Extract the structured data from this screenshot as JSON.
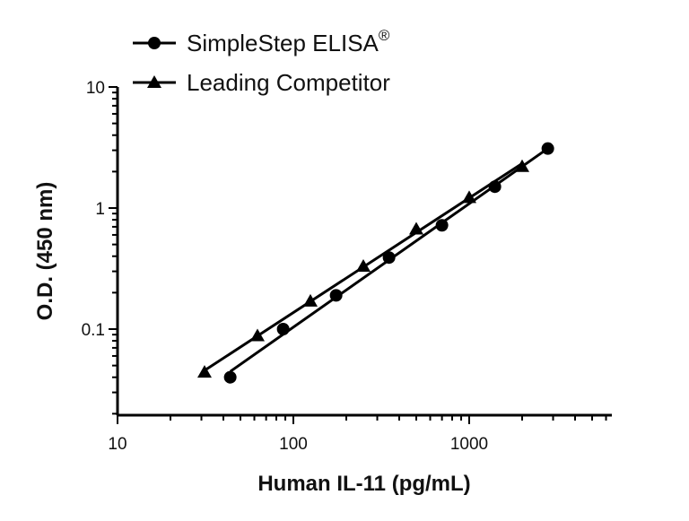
{
  "chart_data": {
    "type": "line",
    "xlabel": "Human IL-11 (pg/mL)",
    "ylabel": "O.D. (450 nm)",
    "xscale": "log",
    "yscale": "log",
    "xlim": [
      10,
      8000
    ],
    "ylim": [
      0.02,
      10
    ],
    "x_ticks": [
      {
        "value": 10,
        "label": "10"
      },
      {
        "value": 100,
        "label": "100"
      },
      {
        "value": 1000,
        "label": "1000"
      }
    ],
    "y_ticks": [
      {
        "value": 0.1,
        "label": "0.1"
      },
      {
        "value": 1,
        "label": "1"
      },
      {
        "value": 10,
        "label": "10"
      }
    ],
    "legend_position": "top-left",
    "series": [
      {
        "name": "SimpleStep ELISA",
        "name_superscript": "®",
        "marker": "circle",
        "color": "#000000",
        "x": [
          43.75,
          87.5,
          175,
          350,
          700,
          1400,
          2800
        ],
        "y": [
          0.04,
          0.1,
          0.19,
          0.39,
          0.72,
          1.5,
          3.1
        ]
      },
      {
        "name": "Leading Competitor",
        "marker": "triangle",
        "color": "#000000",
        "x": [
          31.25,
          62.5,
          125,
          250,
          500,
          1000,
          2000
        ],
        "y": [
          0.044,
          0.088,
          0.17,
          0.33,
          0.67,
          1.22,
          2.2
        ]
      }
    ]
  }
}
